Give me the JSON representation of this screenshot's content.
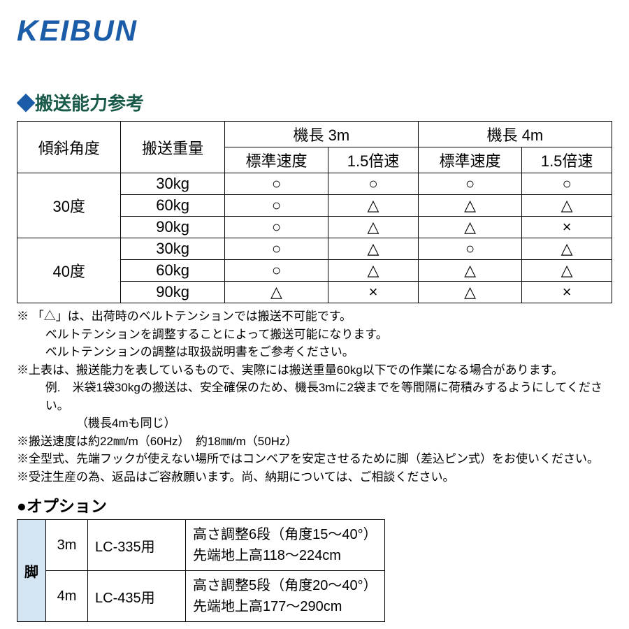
{
  "logo_text": "KEIBUN",
  "section1_heading": "搬送能力参考",
  "capacity_table": {
    "col_angle": "傾斜角度",
    "col_weight": "搬送重量",
    "col_length3": "機長 3m",
    "col_length4": "機長 4m",
    "col_std": "標準速度",
    "col_fast": "1.5倍速",
    "angle_30": "30度",
    "angle_40": "40度",
    "w30": "30kg",
    "w60": "60kg",
    "w90": "90kg",
    "circle": "○",
    "triangle": "△",
    "cross": "×"
  },
  "notes": {
    "n1": "※ 「△」は、出荷時のベルトテンションでは搬送不可能です。",
    "n1a": "ベルトテンションを調整することによって搬送可能になります。",
    "n1b": "ベルトテンションの調整は取扱説明書をご参考ください。",
    "n2": "※上表は、搬送能力を表しているもので、実際には搬送重量60kg以下での作業になる場合があります。",
    "n2a": "例.　米袋1袋30kgの搬送は、安全確保のため、機長3mに2袋までを等間隔に荷積みするようにしてください。",
    "n2b": "（機長4mも同じ）",
    "n3": "※搬送速度は約22㎜/m（60Hz）　約18㎜/m（50Hz）",
    "n4": "※全型式、先端フックが使えない場所ではコンベアを安定させるために脚（差込ピン式）をお使いください。",
    "n5": "※受注生産の為、返品はご容赦願います。尚、納期については、ご相談ください。"
  },
  "option_heading": "●オプション",
  "options": {
    "leg_label": "脚",
    "len_3m": "3m",
    "len_4m": "4m",
    "model_3m": "LC-335用",
    "model_4m": "LC-435用",
    "desc_3m_l1": "高さ調整6段（角度15～40°）",
    "desc_3m_l2": "先端地上高118～224cm",
    "desc_4m_l1": "高さ調整5段（角度20～40°）",
    "desc_4m_l2": "先端地上高177～290cm"
  }
}
